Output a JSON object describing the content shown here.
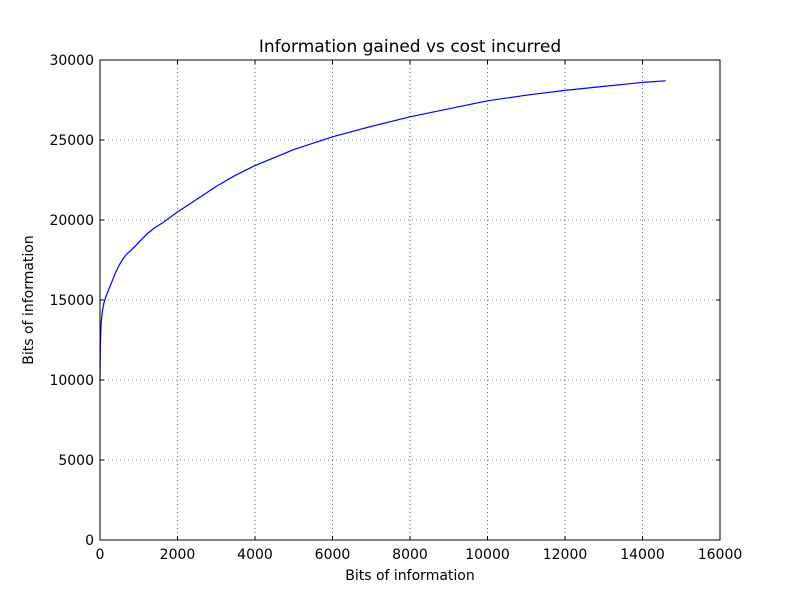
{
  "chart_data": {
    "type": "line",
    "title": "Information gained vs cost incurred",
    "xlabel": "Bits of information",
    "ylabel": "Bits of information",
    "xlim": [
      0,
      16000
    ],
    "ylim": [
      0,
      30000
    ],
    "xticks": [
      0,
      2000,
      4000,
      6000,
      8000,
      10000,
      12000,
      14000,
      16000
    ],
    "yticks": [
      0,
      5000,
      10000,
      15000,
      20000,
      25000,
      30000
    ],
    "xtick_labels": [
      "0",
      "2000",
      "4000",
      "6000",
      "8000",
      "10000",
      "12000",
      "14000",
      "16000"
    ],
    "ytick_labels": [
      "0",
      "5000",
      "10000",
      "15000",
      "20000",
      "25000",
      "30000"
    ],
    "grid": true,
    "series": [
      {
        "color": "#0000ff",
        "x": [
          0,
          10,
          30,
          60,
          100,
          150,
          200,
          300,
          400,
          500,
          600,
          700,
          800,
          1000,
          1200,
          1400,
          1600,
          2000,
          2500,
          3000,
          3500,
          4000,
          5000,
          6000,
          7000,
          8000,
          9000,
          10000,
          11000,
          12000,
          13000,
          14000,
          14600
        ],
        "y": [
          10000,
          12200,
          13600,
          14300,
          14800,
          15200,
          15500,
          16100,
          16700,
          17200,
          17600,
          17900,
          18100,
          18600,
          19100,
          19500,
          19800,
          20500,
          21300,
          22100,
          22800,
          23400,
          24400,
          25200,
          25850,
          26450,
          26950,
          27450,
          27800,
          28100,
          28350,
          28600,
          28700
        ]
      }
    ]
  }
}
